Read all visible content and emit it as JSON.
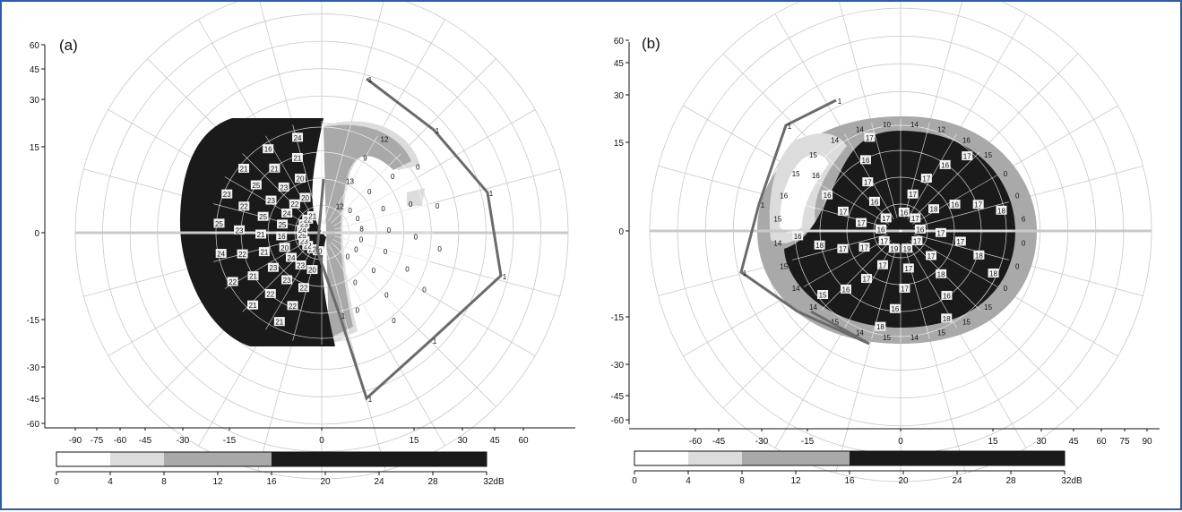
{
  "colors": {
    "frame": "#2f5f9a",
    "grid": "#c8c8c8",
    "axis": "#111111",
    "scale_0_4": "#ffffff",
    "scale_4_8": "#dcdcdc",
    "scale_8_16": "#a9a9a9",
    "scale_16_32": "#1a1a1a",
    "isopter": "#6b6b6b",
    "meridian_line": "#c9c9c9"
  },
  "panels": [
    {
      "label": "(a)",
      "y_ticks": [
        "60",
        "45",
        "30",
        "15",
        "0",
        "-15",
        "-30",
        "-45",
        "-60"
      ],
      "x_ticks": [
        "-90",
        "-75",
        "-60",
        "-45",
        "-30",
        "-15",
        "0",
        "15",
        "30",
        "45",
        "60"
      ],
      "legend_ticks": [
        "0",
        "4",
        "8",
        "12",
        "16",
        "20",
        "24",
        "28",
        "32dB"
      ],
      "sensitivities_dark": [
        "20",
        "20",
        "22",
        "22",
        "21",
        "22",
        "23",
        "23",
        "22",
        "21",
        "22",
        "24",
        "23",
        "21",
        "22",
        "23",
        "20",
        "21",
        "22",
        "24",
        "25",
        "16",
        "21",
        "23",
        "25",
        "24",
        "25",
        "25",
        "22",
        "23",
        "23",
        "24",
        "23",
        "25",
        "21",
        "22",
        "22",
        "23",
        "21",
        "16",
        "21",
        "20",
        "20",
        "21",
        "24"
      ],
      "sensitivities_light": [
        "12",
        "13",
        "9",
        "12",
        "0",
        "0",
        "0",
        "0",
        "0",
        "0",
        "0",
        "0",
        "8",
        "0",
        "0",
        "0",
        "0",
        "0",
        "0",
        "0",
        "0",
        "0",
        "0",
        "0",
        "0",
        "0",
        "0"
      ],
      "isopter_labels": [
        "1",
        "1",
        "1",
        "1",
        "1",
        "1",
        "1"
      ]
    },
    {
      "label": "(b)",
      "y_ticks": [
        "60",
        "45",
        "30",
        "15",
        "0",
        "-15",
        "-30",
        "-45",
        "-60"
      ],
      "x_ticks": [
        "-60",
        "-45",
        "-30",
        "-15",
        "0",
        "15",
        "30",
        "45",
        "60",
        "75",
        "90"
      ],
      "legend_ticks": [
        "0",
        "4",
        "8",
        "12",
        "16",
        "20",
        "24",
        "28",
        "32dB"
      ],
      "sensitivities_dark": [
        "16",
        "17",
        "17",
        "16",
        "17",
        "17",
        "18",
        "16",
        "17",
        "18",
        "16",
        "17",
        "17",
        "18",
        "18",
        "17",
        "17",
        "18",
        "16",
        "18",
        "19",
        "17",
        "17",
        "16",
        "18",
        "19",
        "17",
        "17",
        "16",
        "15",
        "17",
        "17",
        "17",
        "18",
        "16",
        "16",
        "17",
        "17",
        "16",
        "16",
        "17",
        "16",
        "17",
        "16",
        "17"
      ],
      "sensitivities_light": [
        "15",
        "14",
        "14",
        "10",
        "14",
        "12",
        "16",
        "15",
        "0",
        "0",
        "6",
        "0",
        "0",
        "0",
        "15",
        "15",
        "15",
        "14",
        "15",
        "14",
        "15",
        "14",
        "14",
        "15",
        "14",
        "15",
        "16",
        "15"
      ],
      "isopter_labels": [
        "1",
        "1",
        "1",
        "1"
      ]
    }
  ]
}
